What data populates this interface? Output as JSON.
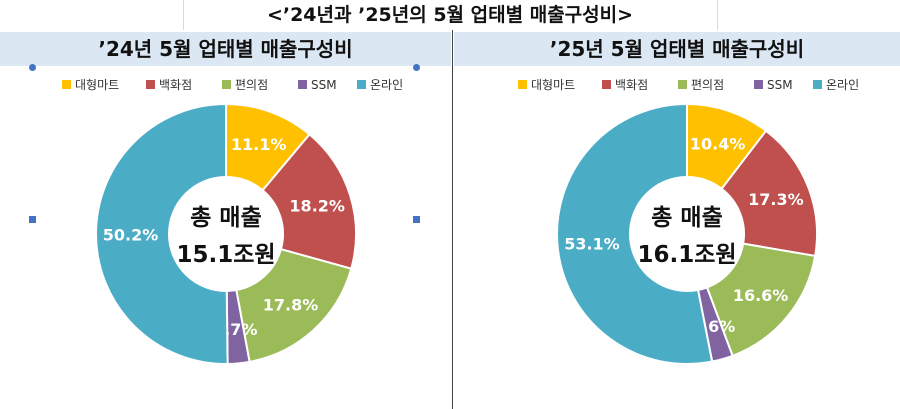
{
  "page_title": "<’24년과 ’25년의 5월 업태별 매출구성비>",
  "chart_data": [
    {
      "type": "pie",
      "title": "’24년 5월 업태별 매출구성비",
      "categories": [
        "대형마트",
        "백화점",
        "편의점",
        "SSM",
        "온라인"
      ],
      "values": [
        11.1,
        18.2,
        17.8,
        2.7,
        50.2
      ],
      "value_labels": [
        "11.1%",
        "18.2%",
        "17.8%",
        "2.7%",
        "50.2%"
      ],
      "center_label": [
        "총 매출",
        "15.1조원"
      ],
      "legend_position": "top"
    },
    {
      "type": "pie",
      "title": "’25년 5월 업태별 매출구성비",
      "categories": [
        "대형마트",
        "백화점",
        "편의점",
        "SSM",
        "온라인"
      ],
      "values": [
        10.4,
        17.3,
        16.6,
        2.6,
        53.1
      ],
      "value_labels": [
        "10.4%",
        "17.3%",
        "16.6%",
        "2.6%",
        "53.1%"
      ],
      "center_label": [
        "총 매출",
        "16.1조원"
      ],
      "legend_position": "top"
    }
  ],
  "colors": {
    "대형마트": "#ffc000",
    "백화점": "#c0504d",
    "편의점": "#9bbb59",
    "SSM": "#8064a2",
    "온라인": "#4bacc6"
  }
}
